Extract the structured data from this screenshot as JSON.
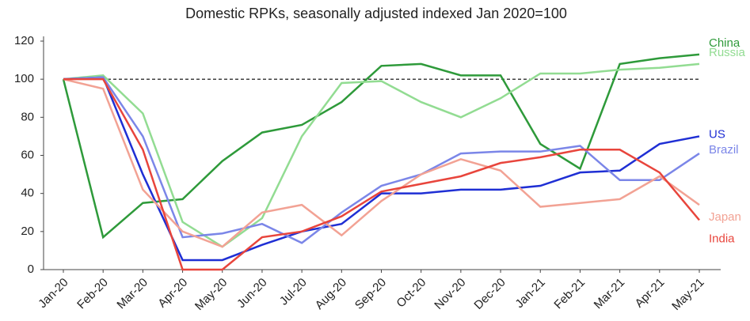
{
  "chart_data": {
    "type": "line",
    "title": "Domestic RPKs, seasonally adjusted indexed Jan 2020=100",
    "categories": [
      "Jan-20",
      "Feb-20",
      "Mar-20",
      "Apr-20",
      "May-20",
      "Jun-20",
      "Jul-20",
      "Aug-20",
      "Sep-20",
      "Oct-20",
      "Nov-20",
      "Dec-20",
      "Jan-21",
      "Feb-21",
      "Mar-21",
      "Apr-21",
      "May-21"
    ],
    "series": [
      {
        "name": "China",
        "color": "#2e9a3a",
        "values": [
          100,
          17,
          35,
          37,
          57,
          72,
          76,
          88,
          107,
          108,
          102,
          102,
          66,
          53,
          108,
          111,
          113
        ]
      },
      {
        "name": "Russia",
        "color": "#92dc92",
        "values": [
          100,
          102,
          82,
          25,
          12,
          27,
          70,
          98,
          99,
          88,
          80,
          90,
          103,
          103,
          105,
          106,
          108
        ]
      },
      {
        "name": "US",
        "color": "#1f2fd4",
        "values": [
          100,
          101,
          50,
          5,
          5,
          13,
          20,
          24,
          40,
          40,
          42,
          42,
          44,
          51,
          52,
          66,
          70
        ]
      },
      {
        "name": "Brazil",
        "color": "#7b86e8",
        "values": [
          100,
          101,
          70,
          17,
          19,
          24,
          14,
          30,
          44,
          50,
          61,
          62,
          62,
          65,
          47,
          47,
          61
        ]
      },
      {
        "name": "Japan",
        "color": "#f2a294",
        "values": [
          100,
          95,
          42,
          20,
          12,
          30,
          34,
          18,
          36,
          50,
          58,
          52,
          33,
          35,
          37,
          49,
          34
        ]
      },
      {
        "name": "India",
        "color": "#e8453c",
        "values": [
          100,
          100,
          63,
          0,
          0,
          17,
          20,
          28,
          41,
          45,
          49,
          56,
          59,
          63,
          63,
          51,
          26
        ]
      }
    ],
    "reference_line": 100,
    "ylim": [
      0,
      120
    ],
    "yticks": [
      0,
      20,
      40,
      60,
      80,
      100,
      120
    ],
    "grid": false
  }
}
